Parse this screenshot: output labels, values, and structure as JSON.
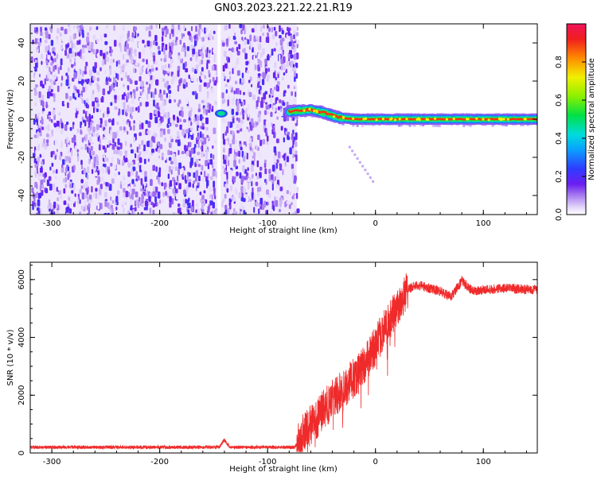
{
  "title": "GN03.2023.221.22.21.R19",
  "colors": {
    "snr_line": "#ef2a2a",
    "colormap": [
      "#ffffff",
      "#e6dcfa",
      "#b48cf0",
      "#8b2cf0",
      "#2f3cff",
      "#00d2e6",
      "#00e046",
      "#8cf000",
      "#e6e600",
      "#ff8c00",
      "#f01e1e",
      "#f0145a"
    ]
  },
  "chart_data": [
    {
      "type": "heatmap",
      "xlabel": "Height of straight line (km)",
      "ylabel": "Frequency (Hz)",
      "xlim": [
        -320,
        150
      ],
      "ylim": [
        -50,
        50
      ],
      "x_ticks": [
        -300,
        -200,
        -100,
        0,
        100
      ],
      "y_ticks": [
        -40,
        -20,
        0,
        20,
        40
      ],
      "noise_region": {
        "x_start": -320,
        "x_end": -73,
        "gap_x": -145
      },
      "blob": {
        "x": -143,
        "y": 3,
        "amplitude": 0.35
      },
      "signal_track": [
        {
          "x": -80,
          "y": 4
        },
        {
          "x": -60,
          "y": 5
        },
        {
          "x": -45,
          "y": 3
        },
        {
          "x": -35,
          "y": 1
        },
        {
          "x": -20,
          "y": 0
        },
        {
          "x": 0,
          "y": 0
        },
        {
          "x": 150,
          "y": 0
        }
      ],
      "colorbar": {
        "label": "Normalized spectral amplitude",
        "range": [
          0,
          1
        ],
        "ticks": [
          "0.0",
          "0.2",
          "0.4",
          "0.6",
          "0.8"
        ]
      }
    },
    {
      "type": "line",
      "xlabel": "Height of straight line (km)",
      "ylabel": "SNR (10 * v/v)",
      "xlim": [
        -320,
        150
      ],
      "ylim": [
        0,
        6600
      ],
      "x_ticks": [
        -300,
        -200,
        -100,
        0,
        100
      ],
      "y_ticks": [
        0,
        2000,
        4000,
        6000
      ],
      "series": [
        {
          "x": [
            -320,
            -145,
            -140,
            -135,
            -75,
            -68,
            -62,
            -55,
            -48,
            -40,
            -30,
            -20,
            -10,
            0,
            10,
            20,
            30,
            40,
            60,
            70,
            80,
            90,
            100,
            120,
            150
          ],
          "y": [
            200,
            200,
            450,
            200,
            200,
            600,
            900,
            1150,
            1500,
            1850,
            2200,
            2600,
            3100,
            3700,
            4400,
            5000,
            5700,
            5800,
            5600,
            5400,
            5950,
            5600,
            5650,
            5700,
            5650
          ]
        }
      ]
    }
  ]
}
